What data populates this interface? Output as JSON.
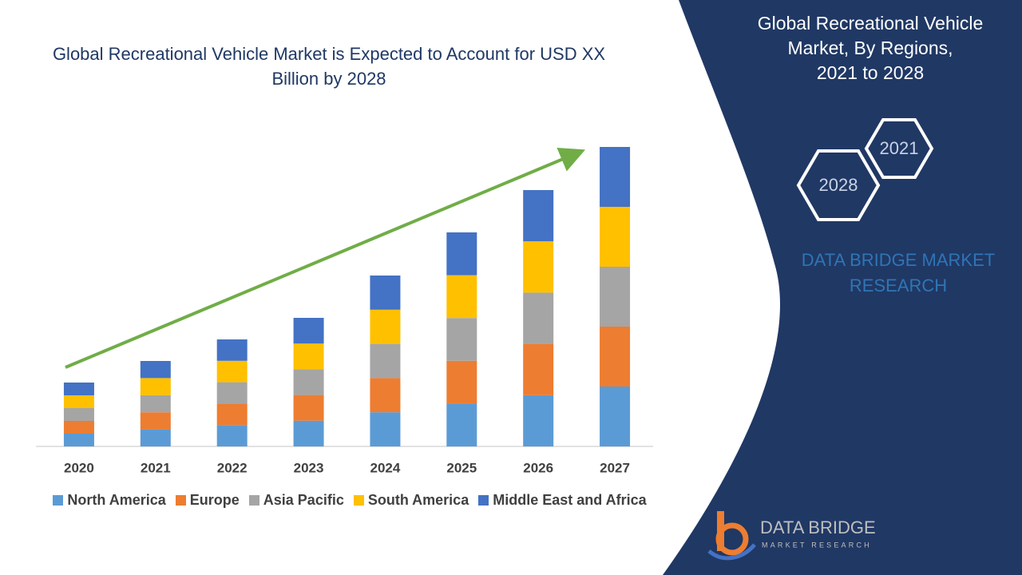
{
  "chart_data": {
    "type": "bar",
    "stacked": true,
    "title": "Global Recreational Vehicle Market is Expected to Account for USD XX Billion by 2028",
    "categories": [
      "2020",
      "2021",
      "2022",
      "2023",
      "2024",
      "2025",
      "2026",
      "2027"
    ],
    "series": [
      {
        "name": "North America",
        "color": "#5b9bd5",
        "values": [
          16,
          21.4,
          26.8,
          32.2,
          42.8,
          53.6,
          64.2,
          75
        ]
      },
      {
        "name": "Europe",
        "color": "#ed7d31",
        "values": [
          16,
          21.4,
          26.8,
          32.2,
          42.8,
          53.6,
          64.2,
          75
        ]
      },
      {
        "name": "Asia Pacific",
        "color": "#a5a5a5",
        "values": [
          16,
          21.4,
          26.8,
          32.2,
          42.8,
          53.6,
          64.2,
          75
        ]
      },
      {
        "name": "South America",
        "color": "#ffc000",
        "values": [
          16,
          21.4,
          26.8,
          32.2,
          42.8,
          53.6,
          64.2,
          75
        ]
      },
      {
        "name": "Middle East and Africa",
        "color": "#4472c4",
        "values": [
          16,
          21.4,
          26.8,
          32.2,
          42.8,
          53.6,
          64.2,
          75
        ]
      }
    ]
  },
  "panel": {
    "title_lines": [
      "Global Recreational Vehicle",
      "Market, By Regions,",
      "2021 to 2028"
    ],
    "hexagons": [
      "2021",
      "2028"
    ],
    "brand": "DATA BRIDGE MARKET RESEARCH"
  },
  "logo": {
    "name": "DATA BRIDGE",
    "tagline": "MARKET RESEARCH"
  }
}
